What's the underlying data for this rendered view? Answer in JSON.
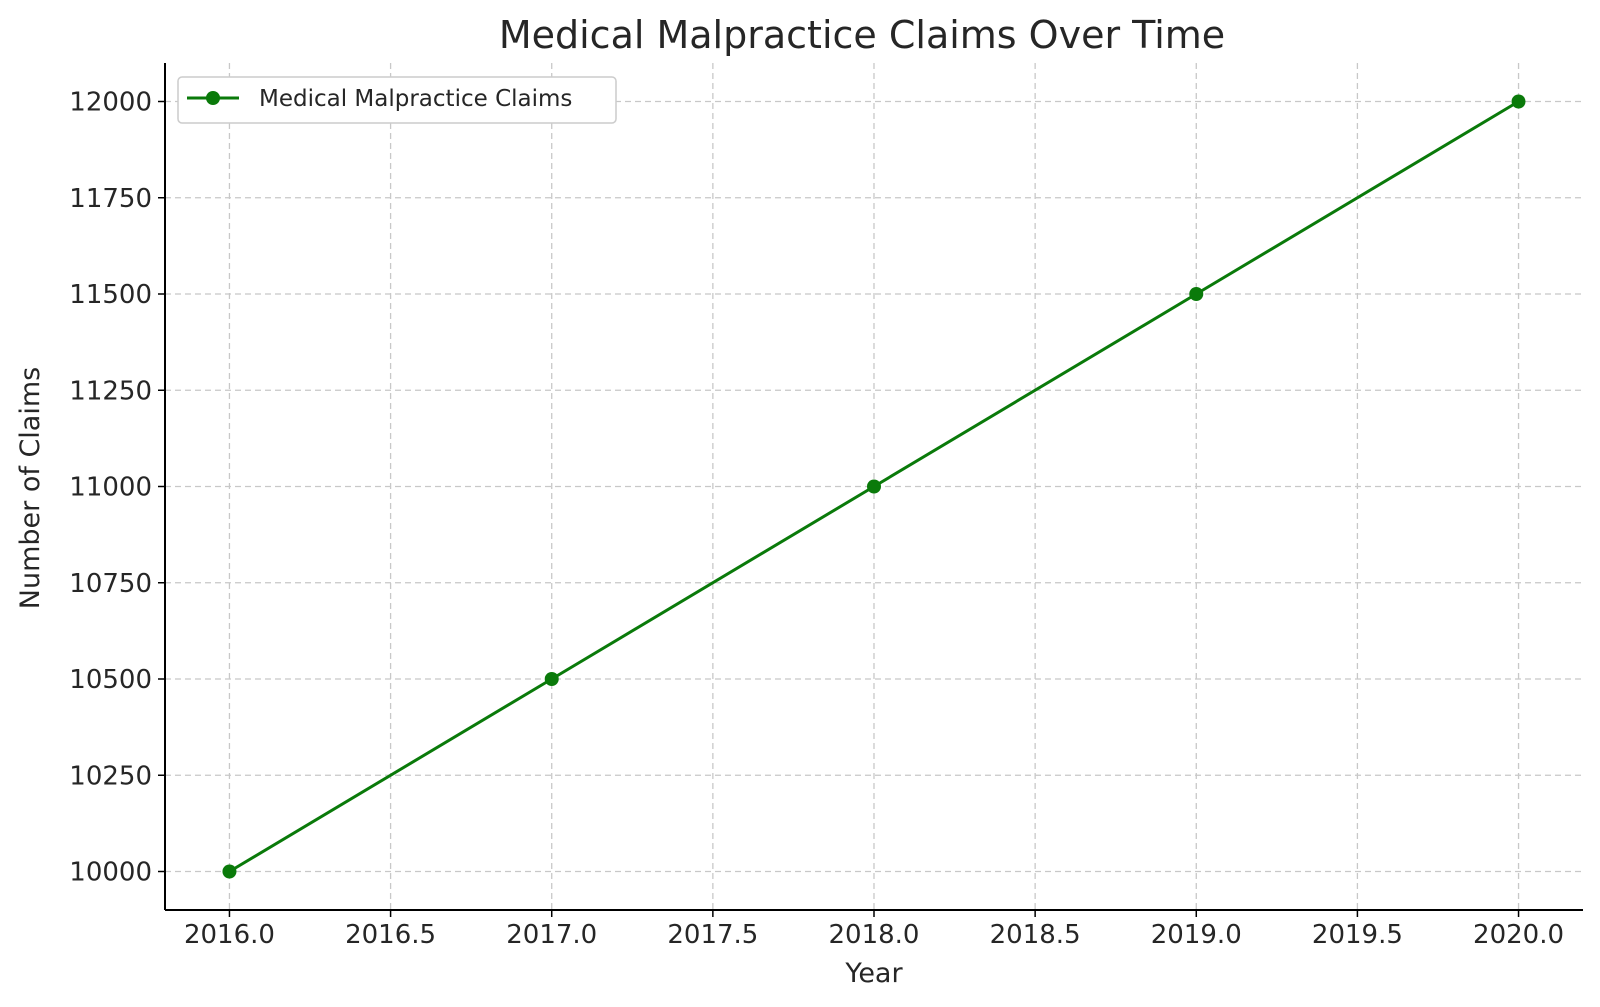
{
  "chart_data": {
    "type": "line",
    "title": "Medical Malpractice Claims Over Time",
    "xlabel": "Year",
    "ylabel": "Number of Claims",
    "x": [
      2016,
      2017,
      2018,
      2019,
      2020
    ],
    "series": [
      {
        "name": "Medical Malpractice Claims",
        "values": [
          10000,
          10500,
          11000,
          11500,
          12000
        ],
        "color": "#0a7a0a"
      }
    ],
    "xlim": [
      2015.8,
      2020.2
    ],
    "ylim": [
      9900,
      12100
    ],
    "xticks": [
      2016.0,
      2016.5,
      2017.0,
      2017.5,
      2018.0,
      2018.5,
      2019.0,
      2019.5,
      2020.0
    ],
    "xtick_labels": [
      "2016.0",
      "2016.5",
      "2017.0",
      "2017.5",
      "2018.0",
      "2018.5",
      "2019.0",
      "2019.5",
      "2020.0"
    ],
    "yticks": [
      10000,
      10250,
      10500,
      10750,
      11000,
      11250,
      11500,
      11750,
      12000
    ],
    "ytick_labels": [
      "10000",
      "10250",
      "10500",
      "10750",
      "11000",
      "11250",
      "11500",
      "11750",
      "12000"
    ],
    "grid": true,
    "legend_position": "top-left"
  }
}
